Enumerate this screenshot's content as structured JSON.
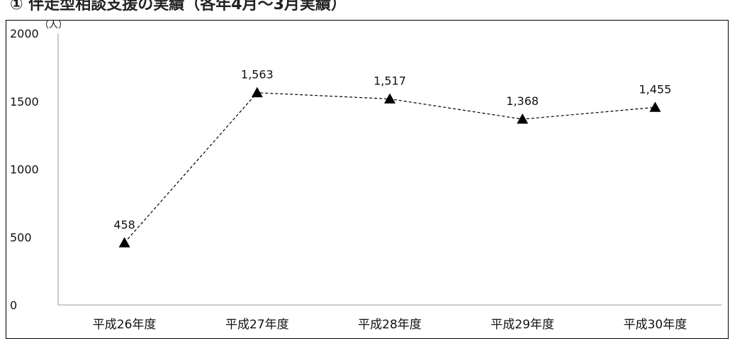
{
  "title": "① 伴走型相談支援の実績（各年4月～3月実績）",
  "chart_data": {
    "type": "line",
    "title": "① 伴走型相談支援の実績（各年4月～3月実績）",
    "unit_label": "（人）",
    "categories": [
      "平成26年度",
      "平成27年度",
      "平成28年度",
      "平成29年度",
      "平成30年度"
    ],
    "values": [
      458,
      1563,
      1517,
      1368,
      1455
    ],
    "data_labels": [
      "458",
      "1,563",
      "1,517",
      "1,368",
      "1,455"
    ],
    "yticks": [
      0,
      500,
      1000,
      1500,
      2000
    ],
    "ylim": [
      0,
      2000
    ],
    "grid": false,
    "line_style": "dashed",
    "marker": "triangle",
    "color": "#000000",
    "legend": "none"
  }
}
